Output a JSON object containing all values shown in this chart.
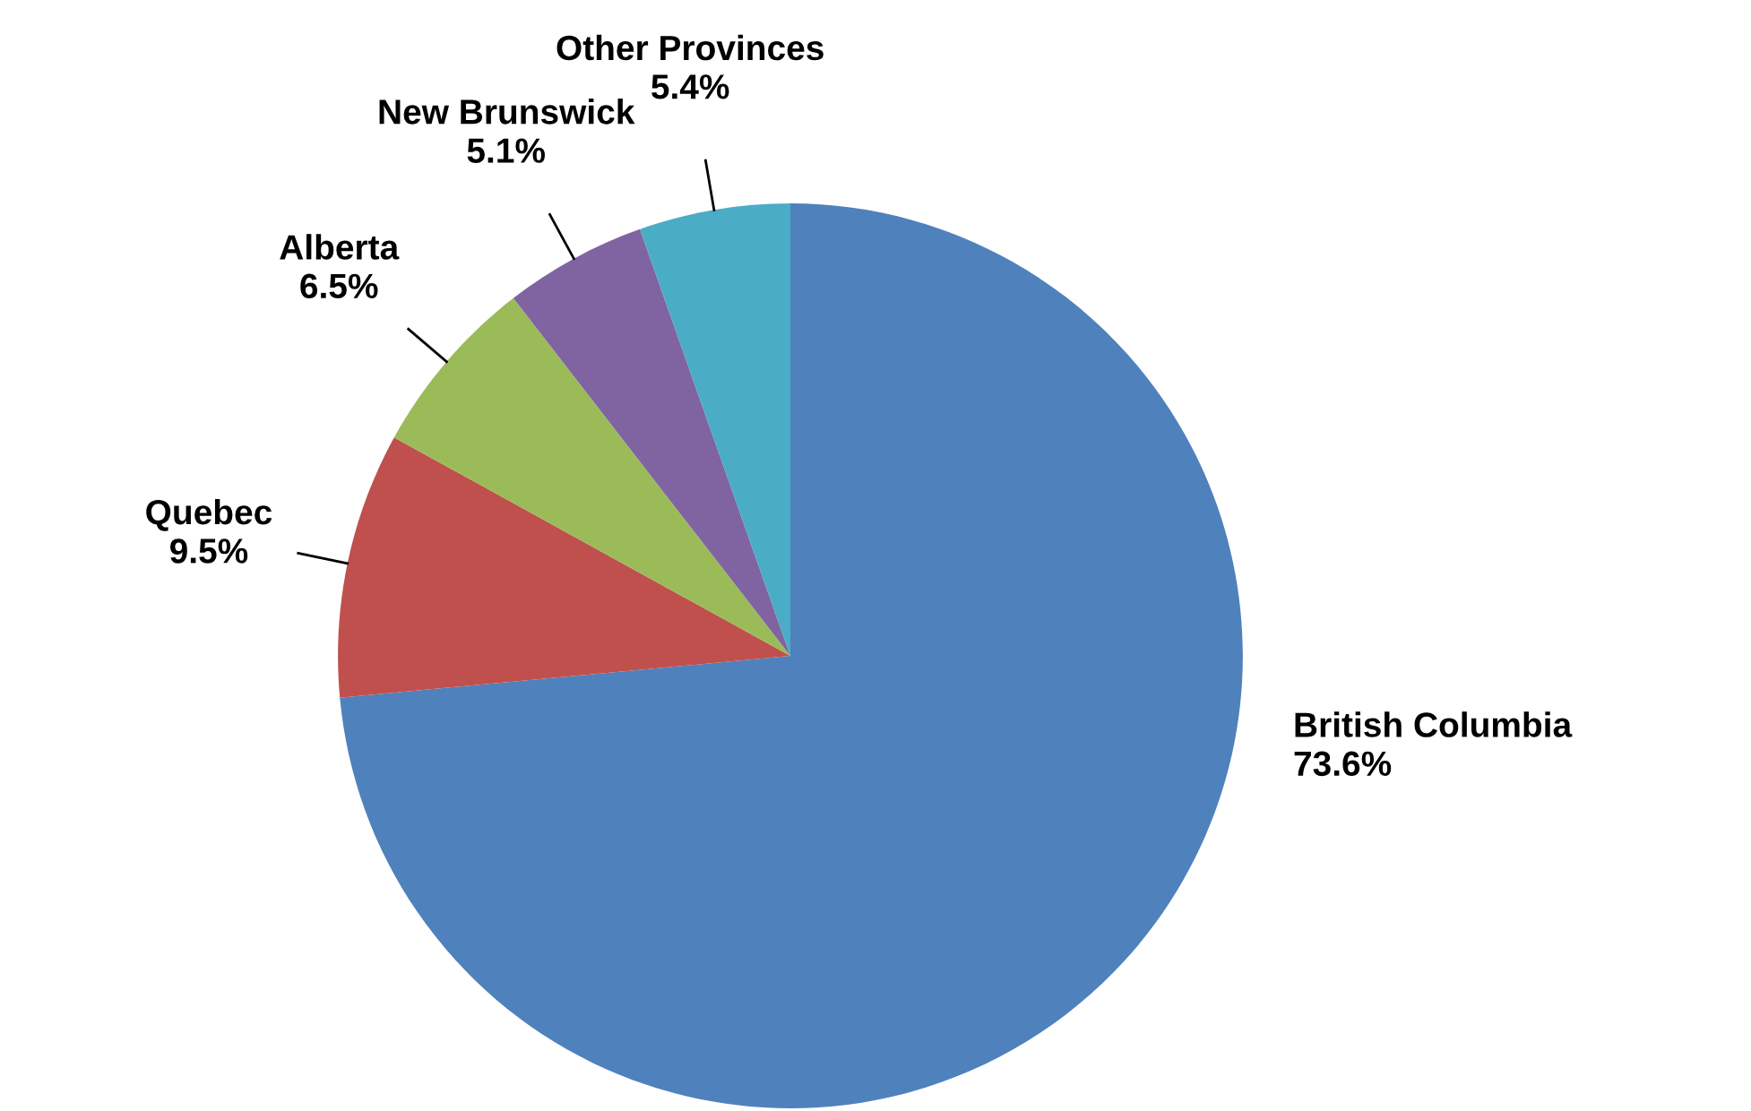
{
  "chart_data": {
    "type": "pie",
    "categories": [
      "British Columbia",
      "Quebec",
      "Alberta",
      "New Brunswick",
      "Other Provinces"
    ],
    "values": [
      73.6,
      9.5,
      6.5,
      5.1,
      5.4
    ],
    "value_labels": [
      "73.6%",
      "9.5%",
      "6.5%",
      "5.1%",
      "5.4%"
    ],
    "colors": [
      "#4f81bd",
      "#c0504d",
      "#9bbb59",
      "#8064a2",
      "#4bacc6"
    ],
    "legend": false
  }
}
